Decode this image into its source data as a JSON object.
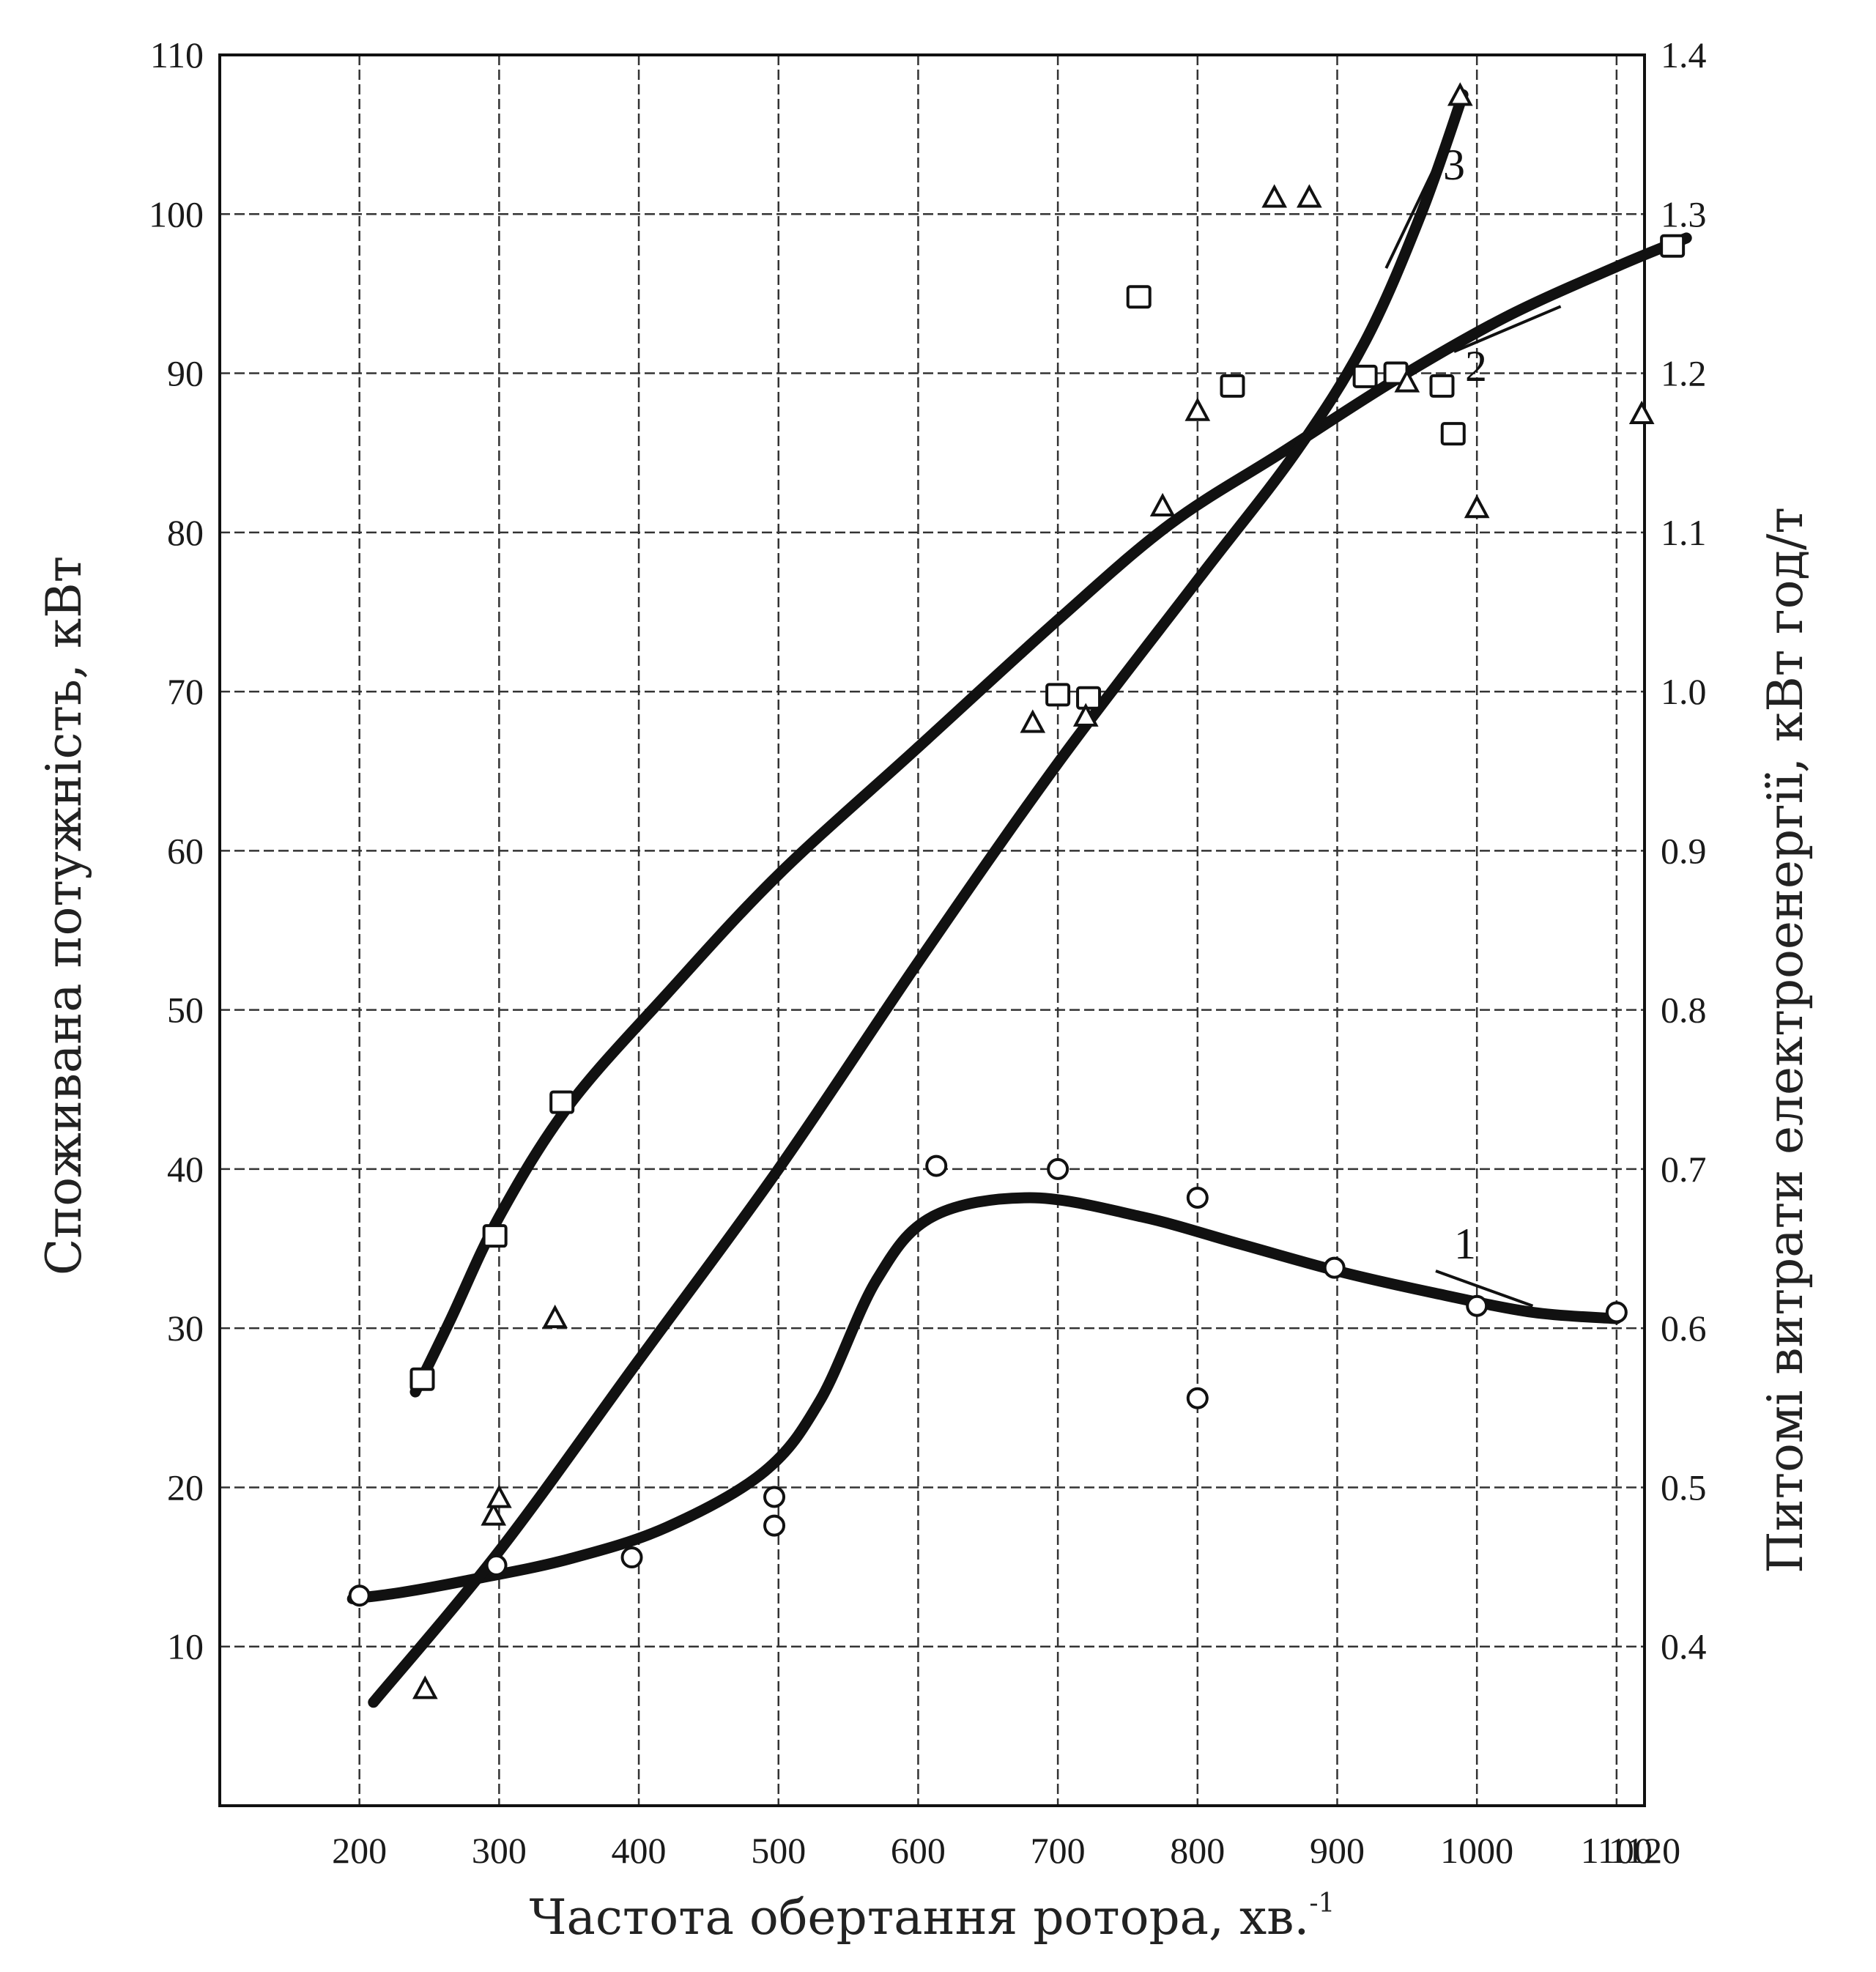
{
  "chart_data": {
    "type": "line",
    "xlabel": "Частота обертання ротора, хв.",
    "xlabel_superscript": "-1",
    "ylabel_left": "Споживана потужність, кВт",
    "ylabel_right": "Питомі витрати електроенергії, кВт год/т",
    "xlim": [
      100,
      1120
    ],
    "ylim_left": [
      0,
      110
    ],
    "ylim_right": [
      0.3,
      1.4
    ],
    "x_tick_values": [
      200,
      300,
      400,
      500,
      600,
      700,
      800,
      900,
      1000,
      1100,
      1120
    ],
    "x_tick_labels": [
      "200",
      "300",
      "400",
      "500",
      "600",
      "700",
      "800",
      "900",
      "1000",
      "1100",
      "1120"
    ],
    "y_left_tick_values": [
      10,
      20,
      30,
      40,
      50,
      60,
      70,
      80,
      90,
      100,
      110
    ],
    "y_left_tick_labels": [
      "10",
      "20",
      "30",
      "40",
      "50",
      "60",
      "70",
      "80",
      "90",
      "100",
      "110"
    ],
    "y_right_tick_values": [
      0.4,
      0.5,
      0.6,
      0.7,
      0.8,
      0.9,
      1.0,
      1.1,
      1.2,
      1.3,
      1.4
    ],
    "y_right_tick_labels": [
      "0.4",
      "0.5",
      "0.6",
      "0.7",
      "0.8",
      "0.9",
      "1.0",
      "1.1",
      "1.2",
      "1.3",
      "1.4"
    ],
    "grid": true,
    "series": [
      {
        "label": "1",
        "axis": "left",
        "marker": "circle",
        "line": [
          [
            195,
            13
          ],
          [
            230,
            13.4
          ],
          [
            280,
            14.2
          ],
          [
            350,
            15.5
          ],
          [
            420,
            17.5
          ],
          [
            490,
            21
          ],
          [
            530,
            25.5
          ],
          [
            570,
            33
          ],
          [
            610,
            37
          ],
          [
            680,
            38.2
          ],
          [
            760,
            37
          ],
          [
            830,
            35.3
          ],
          [
            900,
            33.6
          ],
          [
            970,
            32.2
          ],
          [
            1040,
            31
          ],
          [
            1100,
            30.6
          ]
        ],
        "points": [
          [
            200,
            13.2
          ],
          [
            298,
            15.1
          ],
          [
            395,
            15.6
          ],
          [
            497,
            19.4
          ],
          [
            497,
            17.6
          ],
          [
            613,
            40.2
          ],
          [
            700,
            40
          ],
          [
            800,
            38.2
          ],
          [
            800,
            25.6
          ],
          [
            898,
            33.8
          ],
          [
            1000,
            31.4
          ],
          [
            1100,
            31
          ]
        ]
      },
      {
        "label": "2",
        "axis": "left",
        "marker": "square",
        "line": [
          [
            240,
            26
          ],
          [
            265,
            30.5
          ],
          [
            300,
            37
          ],
          [
            350,
            44
          ],
          [
            420,
            51
          ],
          [
            500,
            58.5
          ],
          [
            600,
            66.5
          ],
          [
            700,
            74.5
          ],
          [
            780,
            80.5
          ],
          [
            860,
            85
          ],
          [
            940,
            89.5
          ],
          [
            1020,
            93.5
          ],
          [
            1100,
            96.7
          ],
          [
            1150,
            98.5
          ]
        ],
        "points": [
          [
            245,
            26.8
          ],
          [
            297,
            35.8
          ],
          [
            345,
            44.2
          ],
          [
            758,
            94.8
          ],
          [
            825,
            89.2
          ],
          [
            700,
            69.8
          ],
          [
            722,
            69.6
          ],
          [
            920,
            89.8
          ],
          [
            942,
            90
          ],
          [
            975,
            89.2
          ],
          [
            983,
            86.2
          ],
          [
            1140,
            98
          ]
        ]
      },
      {
        "label": "3",
        "axis": "left",
        "marker": "triangle",
        "line": [
          [
            210,
            6.5
          ],
          [
            300,
            16
          ],
          [
            400,
            28
          ],
          [
            500,
            40
          ],
          [
            600,
            53
          ],
          [
            700,
            65.5
          ],
          [
            800,
            77
          ],
          [
            870,
            85
          ],
          [
            920,
            92
          ],
          [
            960,
            100
          ],
          [
            990,
            107.5
          ]
        ],
        "points": [
          [
            247,
            7.3
          ],
          [
            340,
            30.6
          ],
          [
            296,
            18.2
          ],
          [
            300,
            19.3
          ],
          [
            682,
            68
          ],
          [
            720,
            68.4
          ],
          [
            775,
            81.6
          ],
          [
            800,
            87.6
          ],
          [
            855,
            101
          ],
          [
            880,
            101
          ],
          [
            950,
            89.4
          ],
          [
            1000,
            81.5
          ],
          [
            1118,
            87.4
          ],
          [
            988,
            107.4
          ]
        ]
      }
    ]
  }
}
